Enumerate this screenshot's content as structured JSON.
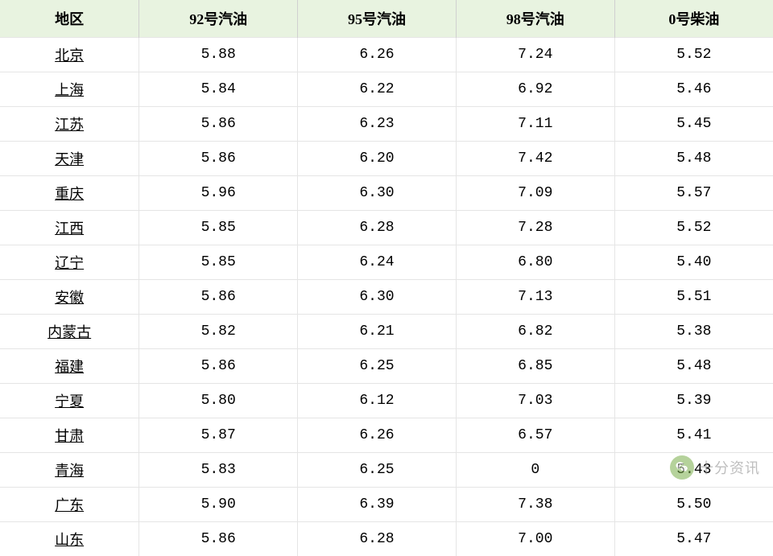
{
  "table": {
    "columns": [
      "地区",
      "92号汽油",
      "95号汽油",
      "98号汽油",
      "0号柴油"
    ],
    "header_bg": "#e8f3e0",
    "border_color": "#e5e5e5",
    "font_size_header": 18,
    "font_size_cell": 18,
    "rows": [
      {
        "region": "北京",
        "g92": "5.88",
        "g95": "6.26",
        "g98": "7.24",
        "d0": "5.52"
      },
      {
        "region": "上海",
        "g92": "5.84",
        "g95": "6.22",
        "g98": "6.92",
        "d0": "5.46"
      },
      {
        "region": "江苏",
        "g92": "5.86",
        "g95": "6.23",
        "g98": "7.11",
        "d0": "5.45"
      },
      {
        "region": "天津",
        "g92": "5.86",
        "g95": "6.20",
        "g98": "7.42",
        "d0": "5.48"
      },
      {
        "region": "重庆",
        "g92": "5.96",
        "g95": "6.30",
        "g98": "7.09",
        "d0": "5.57"
      },
      {
        "region": "江西",
        "g92": "5.85",
        "g95": "6.28",
        "g98": "7.28",
        "d0": "5.52"
      },
      {
        "region": "辽宁",
        "g92": "5.85",
        "g95": "6.24",
        "g98": "6.80",
        "d0": "5.40"
      },
      {
        "region": "安徽",
        "g92": "5.86",
        "g95": "6.30",
        "g98": "7.13",
        "d0": "5.51"
      },
      {
        "region": "内蒙古",
        "g92": "5.82",
        "g95": "6.21",
        "g98": "6.82",
        "d0": "5.38"
      },
      {
        "region": "福建",
        "g92": "5.86",
        "g95": "6.25",
        "g98": "6.85",
        "d0": "5.48"
      },
      {
        "region": "宁夏",
        "g92": "5.80",
        "g95": "6.12",
        "g98": "7.03",
        "d0": "5.39"
      },
      {
        "region": "甘肃",
        "g92": "5.87",
        "g95": "6.26",
        "g98": "6.57",
        "d0": "5.41"
      },
      {
        "region": "青海",
        "g92": "5.83",
        "g95": "6.25",
        "g98": "0",
        "d0": "5.43"
      },
      {
        "region": "广东",
        "g92": "5.90",
        "g95": "6.39",
        "g98": "7.38",
        "d0": "5.50"
      },
      {
        "region": "山东",
        "g92": "5.86",
        "g95": "6.28",
        "g98": "7.00",
        "d0": "5.47"
      }
    ]
  },
  "watermark": {
    "text": "十分资讯",
    "icon_name": "wechat-icon",
    "icon_bg": "#7aae4a",
    "text_color": "#8a8a8a"
  }
}
